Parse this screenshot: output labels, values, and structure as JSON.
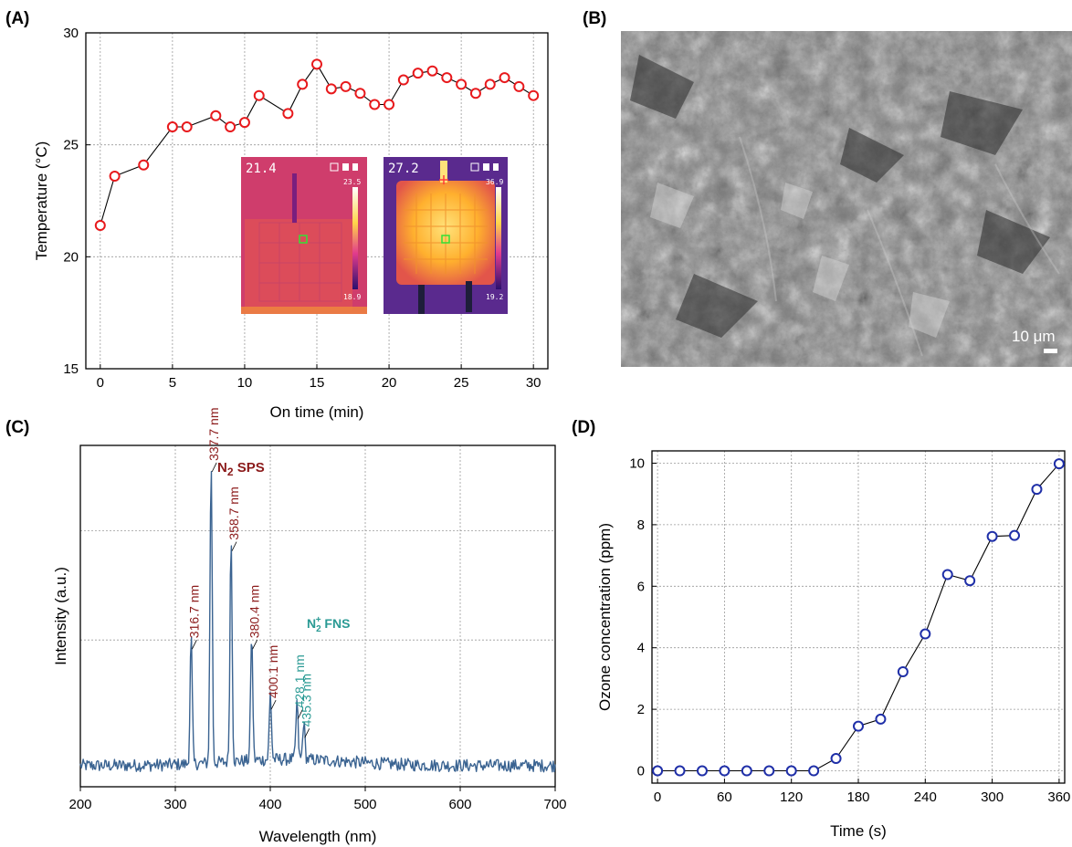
{
  "panels": {
    "a": {
      "letter": "(A)"
    },
    "b": {
      "letter": "(B)",
      "scale_bar": "10 μm"
    },
    "c": {
      "letter": "(C)"
    },
    "d": {
      "letter": "(D)"
    }
  },
  "thermal_images": [
    {
      "reading": "21.4",
      "scale_max": "23.5",
      "scale_min": "18.9"
    },
    {
      "reading": "27.2",
      "scale_max": "36.9",
      "scale_min": "19.2"
    }
  ],
  "chart_data": [
    {
      "panel": "A",
      "type": "line",
      "xlabel": "On time (min)",
      "ylabel": "Temperature (°C)",
      "xlim": [
        -1,
        31
      ],
      "ylim": [
        15,
        30
      ],
      "xticks": [
        0,
        5,
        10,
        15,
        20,
        25,
        30
      ],
      "yticks": [
        15,
        20,
        25,
        30
      ],
      "grid": true,
      "marker_color": "#e8191c",
      "x": [
        0,
        1,
        3,
        5,
        6,
        8,
        9,
        10,
        11,
        13,
        14,
        15,
        16,
        17,
        18,
        19,
        20,
        21,
        22,
        23,
        24,
        25,
        26,
        27,
        28,
        29,
        30
      ],
      "y": [
        21.4,
        23.6,
        24.1,
        25.8,
        25.8,
        26.3,
        25.8,
        26.0,
        27.2,
        26.4,
        27.7,
        28.6,
        27.5,
        27.6,
        27.3,
        26.8,
        26.8,
        27.9,
        28.2,
        28.3,
        28.0,
        27.7,
        27.3,
        27.7,
        28.0,
        27.6,
        27.2
      ]
    },
    {
      "panel": "C",
      "type": "line",
      "xlabel": "Wavelength (nm)",
      "ylabel": "Intensity (a.u.)",
      "xlim": [
        200,
        700
      ],
      "xticks": [
        200,
        300,
        400,
        500,
        600,
        700
      ],
      "grid": true,
      "line_color": "#3a6391",
      "group_labels": [
        {
          "main": "N",
          "sub": "2",
          "rest": " SPS",
          "color": "#8b1a1a"
        },
        {
          "main": "N",
          "sub": "2",
          "sup": "+",
          "rest": " FNS",
          "color": "#2a9a94"
        }
      ],
      "peaks": [
        {
          "x": 316.7,
          "label": "316.7 nm",
          "height": 0.4,
          "color": "#8b1a1a"
        },
        {
          "x": 337.7,
          "label": "337.7 nm",
          "height": 0.96,
          "color": "#8b1a1a"
        },
        {
          "x": 358.7,
          "label": "358.7 nm",
          "height": 0.71,
          "color": "#8b1a1a"
        },
        {
          "x": 380.4,
          "label": "380.4 nm",
          "height": 0.4,
          "color": "#8b1a1a"
        },
        {
          "x": 400.1,
          "label": "400.1 nm",
          "height": 0.21,
          "color": "#8b1a1a"
        },
        {
          "x": 428.1,
          "label": "428.1 nm",
          "height": 0.18,
          "color": "#2a9a94"
        },
        {
          "x": 435.3,
          "label": "435.3 nm",
          "height": 0.12,
          "color": "#2a9a94"
        }
      ]
    },
    {
      "panel": "D",
      "type": "line",
      "xlabel": "Time (s)",
      "ylabel": "Ozone concentration (ppm)",
      "xlim": [
        -5,
        365
      ],
      "ylim": [
        -0.4,
        10.4
      ],
      "xticks": [
        0,
        60,
        120,
        180,
        240,
        300,
        360
      ],
      "yticks": [
        0,
        2,
        4,
        6,
        8,
        10
      ],
      "grid": true,
      "marker_color": "#1f2fa8",
      "x": [
        0,
        20,
        40,
        60,
        80,
        100,
        120,
        140,
        160,
        180,
        200,
        220,
        240,
        260,
        280,
        300,
        320,
        340,
        360
      ],
      "y": [
        0,
        0,
        0,
        0,
        0,
        0,
        0,
        0,
        0.4,
        1.45,
        1.68,
        3.22,
        4.45,
        6.38,
        6.18,
        7.62,
        7.65,
        9.15,
        9.98
      ]
    }
  ]
}
